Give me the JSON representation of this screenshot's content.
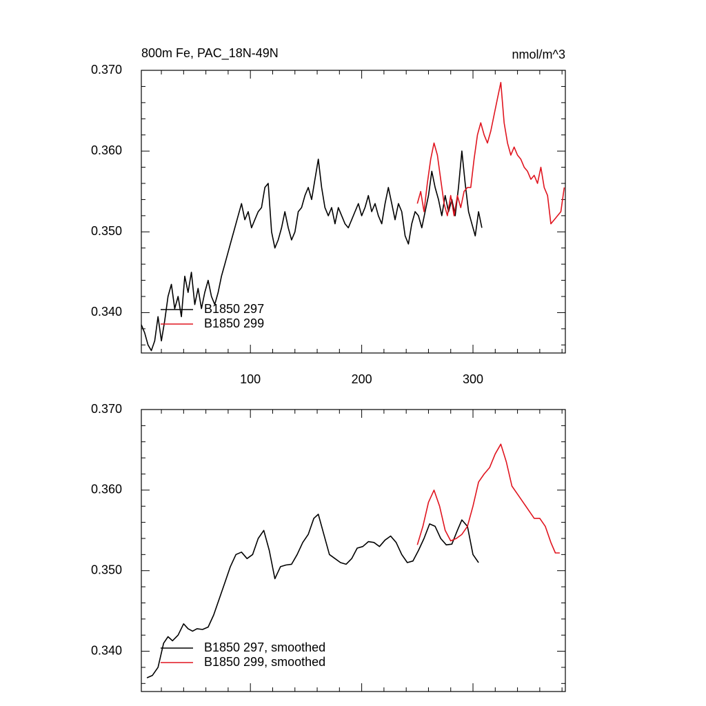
{
  "chart_data": [
    {
      "type": "line",
      "title": "800m Fe, PAC_18N-49N",
      "units": "nmol/m^3",
      "xlim": [
        2,
        383
      ],
      "xticks": [
        100,
        200,
        300
      ],
      "xtick_labels": true,
      "ylim": [
        0.335,
        0.37
      ],
      "yticks": [
        {
          "value": 0.34,
          "label": "0.340"
        },
        {
          "value": 0.35,
          "label": "0.350"
        },
        {
          "value": 0.36,
          "label": "0.360"
        },
        {
          "value": 0.37,
          "label": "0.370"
        }
      ],
      "legend": "bottom-left",
      "series": [
        {
          "name": "B1850 297",
          "color": "#000000",
          "x": [
            2,
            5,
            8,
            11,
            14,
            17,
            20,
            23,
            26,
            29,
            32,
            35,
            38,
            41,
            44,
            47,
            50,
            53,
            56,
            59,
            62,
            65,
            68,
            71,
            74,
            77,
            80,
            83,
            86,
            89,
            92,
            95,
            98,
            101,
            104,
            107,
            110,
            113,
            116,
            119,
            122,
            125,
            128,
            131,
            134,
            137,
            140,
            143,
            146,
            149,
            152,
            155,
            158,
            161,
            164,
            167,
            170,
            173,
            176,
            179,
            182,
            185,
            188,
            191,
            194,
            197,
            200,
            203,
            206,
            209,
            212,
            215,
            218,
            221,
            224,
            227,
            230,
            233,
            236,
            239,
            242,
            245,
            248,
            251,
            254,
            257,
            260,
            263,
            266,
            269,
            272,
            275,
            278,
            281,
            284,
            287,
            290,
            293,
            296,
            299,
            302,
            305,
            308
          ],
          "values": [
            0.3385,
            0.3375,
            0.336,
            0.3353,
            0.3365,
            0.3395,
            0.3365,
            0.339,
            0.342,
            0.3435,
            0.3405,
            0.342,
            0.3395,
            0.3445,
            0.3425,
            0.345,
            0.341,
            0.343,
            0.3405,
            0.3425,
            0.344,
            0.342,
            0.341,
            0.3425,
            0.3445,
            0.346,
            0.3475,
            0.349,
            0.3505,
            0.352,
            0.3535,
            0.3515,
            0.3525,
            0.3505,
            0.3515,
            0.3525,
            0.353,
            0.3555,
            0.356,
            0.35,
            0.348,
            0.349,
            0.3505,
            0.3525,
            0.3505,
            0.349,
            0.35,
            0.3525,
            0.353,
            0.3545,
            0.3555,
            0.354,
            0.3565,
            0.359,
            0.3555,
            0.353,
            0.352,
            0.353,
            0.351,
            0.353,
            0.352,
            0.351,
            0.3505,
            0.3515,
            0.3525,
            0.3535,
            0.352,
            0.353,
            0.3545,
            0.3525,
            0.3535,
            0.352,
            0.351,
            0.3535,
            0.3555,
            0.3535,
            0.3515,
            0.3535,
            0.3525,
            0.3495,
            0.3485,
            0.351,
            0.3525,
            0.352,
            0.3505,
            0.3525,
            0.3545,
            0.3575,
            0.3555,
            0.354,
            0.352,
            0.3545,
            0.3525,
            0.354,
            0.352,
            0.3555,
            0.36,
            0.356,
            0.3525,
            0.351,
            0.3495,
            0.3525,
            0.3505
          ]
        },
        {
          "name": "B1850 299",
          "color": "#e0141e",
          "x": [
            250,
            253,
            256,
            259,
            262,
            265,
            268,
            271,
            274,
            277,
            280,
            283,
            286,
            289,
            292,
            295,
            298,
            301,
            304,
            307,
            310,
            313,
            316,
            319,
            322,
            325,
            328,
            331,
            334,
            337,
            340,
            343,
            346,
            349,
            352,
            355,
            358,
            361,
            364,
            367,
            370,
            373,
            376,
            379,
            382
          ],
          "values": [
            0.3535,
            0.355,
            0.3525,
            0.356,
            0.359,
            0.361,
            0.3595,
            0.3565,
            0.3535,
            0.352,
            0.3545,
            0.352,
            0.3545,
            0.353,
            0.355,
            0.3555,
            0.3555,
            0.359,
            0.362,
            0.3635,
            0.362,
            0.361,
            0.3625,
            0.3645,
            0.3665,
            0.3685,
            0.3635,
            0.361,
            0.3595,
            0.3605,
            0.3595,
            0.359,
            0.358,
            0.3575,
            0.3565,
            0.357,
            0.356,
            0.358,
            0.3555,
            0.3545,
            0.351,
            0.3515,
            0.352,
            0.3525,
            0.3555
          ]
        }
      ]
    },
    {
      "type": "line",
      "xlim": [
        2,
        383
      ],
      "xticks": [
        100,
        200,
        300
      ],
      "xtick_labels": false,
      "ylim": [
        0.335,
        0.37
      ],
      "yticks": [
        {
          "value": 0.34,
          "label": "0.340"
        },
        {
          "value": 0.35,
          "label": "0.350"
        },
        {
          "value": 0.36,
          "label": "0.360"
        },
        {
          "value": 0.37,
          "label": "0.370"
        }
      ],
      "legend": "bottom-left",
      "series": [
        {
          "name": "B1850 297, smoothed",
          "color": "#000000",
          "x": [
            7,
            12,
            17,
            22,
            26,
            30,
            35,
            40,
            44,
            48,
            52,
            57,
            62,
            67,
            72,
            77,
            82,
            87,
            92,
            97,
            102,
            107,
            112,
            117,
            122,
            127,
            132,
            137,
            142,
            147,
            152,
            157,
            161,
            166,
            171,
            176,
            181,
            186,
            191,
            196,
            201,
            206,
            211,
            216,
            221,
            226,
            231,
            236,
            241,
            246,
            251,
            256,
            261,
            266,
            271,
            276,
            281,
            286,
            290,
            295,
            300,
            305
          ],
          "values": [
            0.3367,
            0.337,
            0.338,
            0.341,
            0.3418,
            0.3413,
            0.342,
            0.3434,
            0.3428,
            0.3425,
            0.3428,
            0.3427,
            0.343,
            0.3445,
            0.3465,
            0.3485,
            0.3505,
            0.352,
            0.3523,
            0.3515,
            0.352,
            0.354,
            0.355,
            0.3525,
            0.349,
            0.3505,
            0.3507,
            0.3508,
            0.352,
            0.3535,
            0.3545,
            0.3565,
            0.357,
            0.3545,
            0.352,
            0.3515,
            0.351,
            0.3508,
            0.3515,
            0.3528,
            0.353,
            0.3536,
            0.3535,
            0.353,
            0.3538,
            0.3543,
            0.3535,
            0.352,
            0.351,
            0.3512,
            0.3525,
            0.354,
            0.3558,
            0.3555,
            0.354,
            0.3532,
            0.3533,
            0.355,
            0.3563,
            0.3555,
            0.352,
            0.351
          ]
        },
        {
          "name": "B1850 299, smoothed",
          "color": "#e0141e",
          "x": [
            250,
            255,
            260,
            265,
            270,
            275,
            280,
            285,
            290,
            295,
            300,
            305,
            310,
            315,
            320,
            325,
            330,
            335,
            340,
            345,
            350,
            355,
            360,
            365,
            370,
            374,
            378
          ],
          "values": [
            0.3532,
            0.3555,
            0.3585,
            0.36,
            0.358,
            0.355,
            0.3537,
            0.354,
            0.3545,
            0.3555,
            0.358,
            0.361,
            0.362,
            0.3628,
            0.3645,
            0.3657,
            0.3635,
            0.3605,
            0.3595,
            0.3585,
            0.3575,
            0.3565,
            0.3565,
            0.3555,
            0.3535,
            0.3522,
            0.3522
          ]
        }
      ]
    }
  ]
}
